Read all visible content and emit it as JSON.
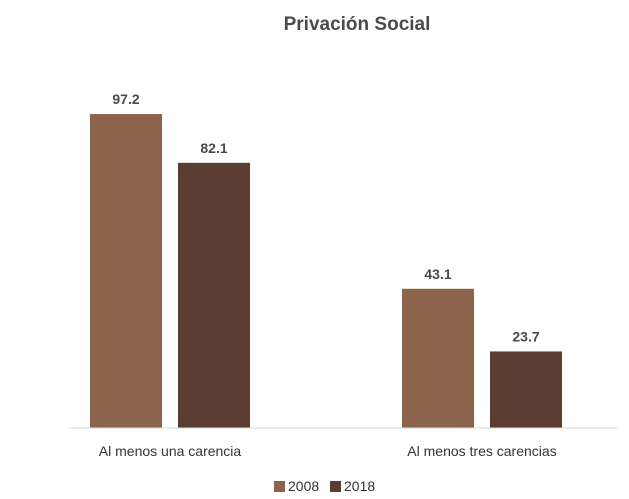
{
  "chart_data": {
    "type": "bar",
    "title": "Privación Social",
    "categories": [
      "Al menos una carencia",
      "Al menos tres carencias"
    ],
    "series": [
      {
        "name": "2008",
        "values": [
          97.2,
          43.1
        ],
        "color": "#8c634b"
      },
      {
        "name": "2018",
        "values": [
          82.1,
          23.7
        ],
        "color": "#5a3c30"
      }
    ],
    "xlabel": "",
    "ylabel": "",
    "ylim": [
      0,
      100
    ],
    "grid": false,
    "legend_position": "bottom",
    "data_labels": true
  }
}
